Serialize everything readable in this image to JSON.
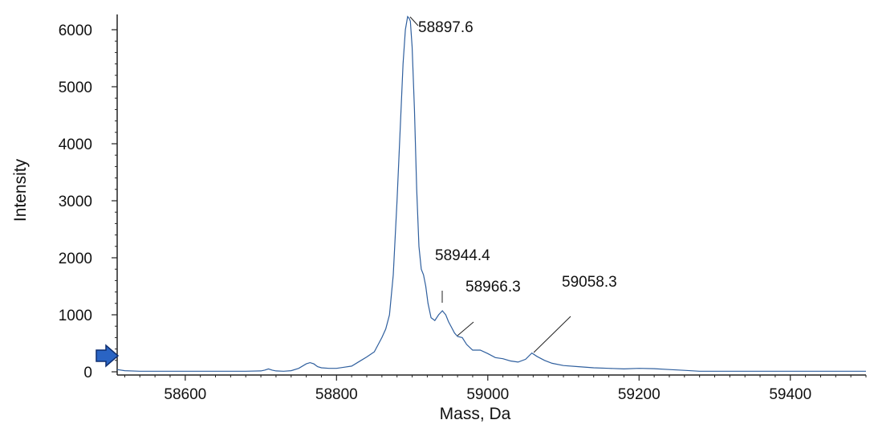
{
  "chart_data": {
    "type": "line",
    "xlabel": "Mass, Da",
    "ylabel": "Intensity",
    "xlim": [
      58510,
      59500
    ],
    "ylim": [
      0,
      6250
    ],
    "xticks": [
      "58600",
      "58800",
      "59000",
      "59200",
      "59400"
    ],
    "yticks": [
      "0",
      "1000",
      "2000",
      "3000",
      "4000",
      "5000",
      "6000"
    ],
    "grid": false,
    "line_color": "#2f5f9e",
    "marker_color": "#2a64c4",
    "series": [
      {
        "x": [
          58510,
          58520,
          58540,
          58560,
          58580,
          58600,
          58620,
          58640,
          58660,
          58680,
          58700,
          58705,
          58710,
          58715,
          58720,
          58730,
          58740,
          58750,
          58760,
          58765,
          58770,
          58775,
          58780,
          58790,
          58800,
          58810,
          58820,
          58830,
          58840,
          58850,
          58860,
          58865,
          58870,
          58875,
          58880,
          58885,
          58888,
          58891,
          58894,
          58896,
          58897.6,
          58900,
          58903,
          58906,
          58909,
          58912,
          58915,
          58918,
          58921,
          58925,
          58930,
          58935,
          58940,
          58944.4,
          58948,
          58952,
          58956,
          58960,
          58966.3,
          58972,
          58980,
          58990,
          59000,
          59010,
          59020,
          59030,
          59040,
          59050,
          59058.3,
          59065,
          59075,
          59085,
          59100,
          59120,
          59140,
          59160,
          59180,
          59200,
          59220,
          59240,
          59260,
          59280,
          59300,
          59350,
          59400,
          59450,
          59500
        ],
        "y": [
          40,
          20,
          10,
          10,
          10,
          10,
          10,
          10,
          10,
          10,
          15,
          30,
          50,
          30,
          15,
          10,
          20,
          60,
          140,
          160,
          140,
          90,
          70,
          60,
          60,
          80,
          100,
          180,
          260,
          350,
          600,
          750,
          1000,
          1700,
          3000,
          4500,
          5400,
          6000,
          6230,
          6200,
          6150,
          5700,
          4600,
          3200,
          2200,
          1800,
          1700,
          1500,
          1200,
          950,
          900,
          1000,
          1070,
          1000,
          880,
          780,
          680,
          620,
          600,
          480,
          380,
          380,
          320,
          250,
          230,
          190,
          170,
          220,
          330,
          270,
          200,
          150,
          110,
          90,
          70,
          60,
          50,
          60,
          55,
          40,
          25,
          10,
          10,
          10,
          10,
          10,
          10
        ]
      }
    ],
    "annotations": [
      {
        "label": "58897.6",
        "x": 58897.6,
        "y": 6230
      },
      {
        "label": "58944.4",
        "x": 58944.4,
        "y": 1070
      },
      {
        "label": "58966.3",
        "x": 58966.3,
        "y": 620
      },
      {
        "label": "59058.3",
        "x": 59058.3,
        "y": 330
      }
    ]
  }
}
